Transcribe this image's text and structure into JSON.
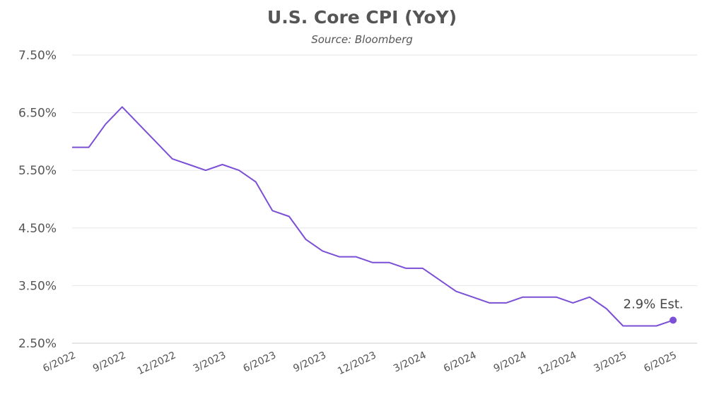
{
  "chart_data": {
    "type": "line",
    "title": "U.S. Core CPI (YoY)",
    "subtitle": "Source: Bloomberg",
    "xlabel": "",
    "ylabel": "",
    "ylim": [
      2.5,
      7.5
    ],
    "y_ticks": [
      "7.50%",
      "6.50%",
      "5.50%",
      "4.50%",
      "3.50%",
      "2.50%"
    ],
    "x_ticks": [
      "6/2022",
      "9/2022",
      "12/2022",
      "3/2023",
      "6/2023",
      "9/2023",
      "12/2023",
      "3/2024",
      "6/2024",
      "9/2024",
      "12/2024",
      "3/2025",
      "6/2025"
    ],
    "grid": true,
    "line_color": "#7b4fd6",
    "x": [
      "6/2022",
      "7/2022",
      "8/2022",
      "9/2022",
      "10/2022",
      "11/2022",
      "12/2022",
      "1/2023",
      "2/2023",
      "3/2023",
      "4/2023",
      "5/2023",
      "6/2023",
      "7/2023",
      "8/2023",
      "9/2023",
      "10/2023",
      "11/2023",
      "12/2023",
      "1/2024",
      "2/2024",
      "3/2024",
      "4/2024",
      "5/2024",
      "6/2024",
      "7/2024",
      "8/2024",
      "9/2024",
      "10/2024",
      "11/2024",
      "12/2024",
      "1/2025",
      "2/2025",
      "3/2025",
      "4/2025",
      "5/2025",
      "6/2025"
    ],
    "values": [
      5.9,
      5.9,
      6.3,
      6.6,
      6.3,
      6.0,
      5.7,
      5.6,
      5.5,
      5.6,
      5.5,
      5.3,
      4.8,
      4.7,
      4.3,
      4.1,
      4.0,
      4.0,
      3.9,
      3.9,
      3.8,
      3.8,
      3.6,
      3.4,
      3.3,
      3.2,
      3.2,
      3.3,
      3.3,
      3.3,
      3.2,
      3.3,
      3.1,
      2.8,
      2.8,
      2.8,
      2.9
    ],
    "annotation": {
      "text": "2.9% Est.",
      "at": "6/2025",
      "value": 2.9
    }
  }
}
